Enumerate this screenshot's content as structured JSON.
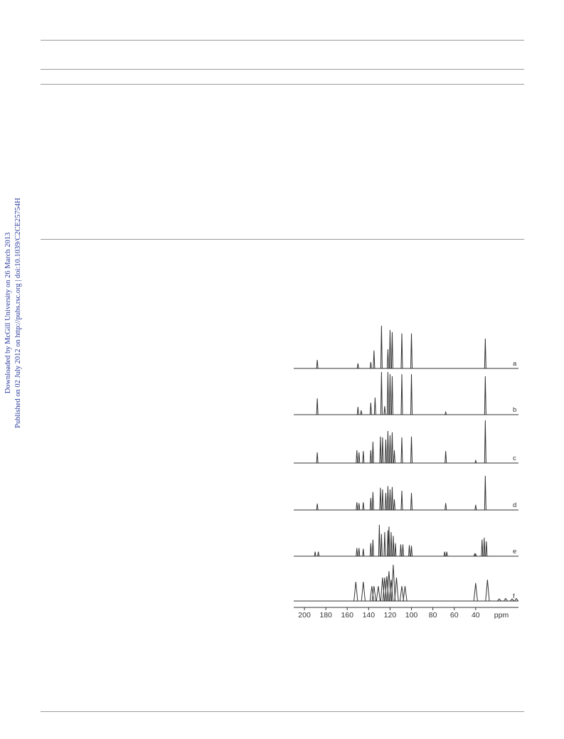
{
  "side_note": {
    "line1": "Downloaded by McGill University on 26 March 2013",
    "line2": "Published on 02 July 2012 on http://pubs.rsc.org | doi:10.1039/C2CE25754H",
    "color": "#2a3b9b"
  },
  "chart_data": {
    "type": "line",
    "title": "",
    "xlabel": "ppm",
    "ylabel": "",
    "xlim": [
      210,
      0
    ],
    "x_reversed": true,
    "grid": false,
    "x_ticks": [
      200,
      180,
      160,
      140,
      120,
      100,
      80,
      60,
      40
    ],
    "line_color": "#333333",
    "series": [
      {
        "name": "a",
        "peaks": [
          {
            "x": 188,
            "h": 0.2
          },
          {
            "x": 150,
            "h": 0.12
          },
          {
            "x": 138,
            "h": 0.15
          },
          {
            "x": 135,
            "h": 0.42
          },
          {
            "x": 128,
            "h": 1.0
          },
          {
            "x": 122,
            "h": 0.45
          },
          {
            "x": 120,
            "h": 0.9
          },
          {
            "x": 118,
            "h": 0.85
          },
          {
            "x": 109,
            "h": 0.82
          },
          {
            "x": 100,
            "h": 0.82
          },
          {
            "x": 31,
            "h": 0.7
          }
        ]
      },
      {
        "name": "b",
        "peaks": [
          {
            "x": 188,
            "h": 0.38
          },
          {
            "x": 150,
            "h": 0.18
          },
          {
            "x": 147,
            "h": 0.1
          },
          {
            "x": 138,
            "h": 0.28
          },
          {
            "x": 134,
            "h": 0.4
          },
          {
            "x": 128,
            "h": 1.0
          },
          {
            "x": 125,
            "h": 0.2
          },
          {
            "x": 122,
            "h": 1.0
          },
          {
            "x": 120,
            "h": 0.95
          },
          {
            "x": 118,
            "h": 0.9
          },
          {
            "x": 109,
            "h": 0.95
          },
          {
            "x": 100,
            "h": 0.95
          },
          {
            "x": 68,
            "h": 0.06
          },
          {
            "x": 31,
            "h": 0.9
          }
        ]
      },
      {
        "name": "c",
        "peaks": [
          {
            "x": 188,
            "h": 0.25
          },
          {
            "x": 151,
            "h": 0.3
          },
          {
            "x": 149,
            "h": 0.25
          },
          {
            "x": 145,
            "h": 0.28
          },
          {
            "x": 138,
            "h": 0.3
          },
          {
            "x": 136,
            "h": 0.5
          },
          {
            "x": 129,
            "h": 0.62
          },
          {
            "x": 127,
            "h": 0.6
          },
          {
            "x": 124,
            "h": 0.55
          },
          {
            "x": 122,
            "h": 0.75
          },
          {
            "x": 120,
            "h": 0.65
          },
          {
            "x": 118,
            "h": 0.72
          },
          {
            "x": 116,
            "h": 0.3
          },
          {
            "x": 109,
            "h": 0.6
          },
          {
            "x": 100,
            "h": 0.62
          },
          {
            "x": 68,
            "h": 0.28
          },
          {
            "x": 40,
            "h": 0.06
          },
          {
            "x": 31,
            "h": 1.0
          }
        ]
      },
      {
        "name": "d",
        "peaks": [
          {
            "x": 188,
            "h": 0.15
          },
          {
            "x": 151,
            "h": 0.18
          },
          {
            "x": 149,
            "h": 0.16
          },
          {
            "x": 145,
            "h": 0.18
          },
          {
            "x": 138,
            "h": 0.28
          },
          {
            "x": 136,
            "h": 0.42
          },
          {
            "x": 129,
            "h": 0.52
          },
          {
            "x": 127,
            "h": 0.48
          },
          {
            "x": 124,
            "h": 0.4
          },
          {
            "x": 122,
            "h": 0.56
          },
          {
            "x": 120,
            "h": 0.48
          },
          {
            "x": 118,
            "h": 0.54
          },
          {
            "x": 116,
            "h": 0.25
          },
          {
            "x": 109,
            "h": 0.45
          },
          {
            "x": 100,
            "h": 0.4
          },
          {
            "x": 68,
            "h": 0.16
          },
          {
            "x": 40,
            "h": 0.12
          },
          {
            "x": 31,
            "h": 0.8
          }
        ]
      },
      {
        "name": "e",
        "peaks": [
          {
            "x": 190,
            "h": 0.12
          },
          {
            "x": 187,
            "h": 0.12
          },
          {
            "x": 151,
            "h": 0.22
          },
          {
            "x": 149,
            "h": 0.22
          },
          {
            "x": 145,
            "h": 0.2
          },
          {
            "x": 138,
            "h": 0.35
          },
          {
            "x": 136,
            "h": 0.45
          },
          {
            "x": 130,
            "h": 0.85
          },
          {
            "x": 128,
            "h": 0.6
          },
          {
            "x": 125,
            "h": 0.65
          },
          {
            "x": 122,
            "h": 0.7
          },
          {
            "x": 121,
            "h": 0.8
          },
          {
            "x": 119,
            "h": 0.65
          },
          {
            "x": 117,
            "h": 0.55
          },
          {
            "x": 115,
            "h": 0.35
          },
          {
            "x": 110,
            "h": 0.32
          },
          {
            "x": 108,
            "h": 0.32
          },
          {
            "x": 102,
            "h": 0.3
          },
          {
            "x": 100,
            "h": 0.28
          },
          {
            "x": 69,
            "h": 0.12
          },
          {
            "x": 67,
            "h": 0.12
          },
          {
            "x": 41,
            "h": 0.06
          },
          {
            "x": 40,
            "h": 0.06
          },
          {
            "x": 34,
            "h": 0.45
          },
          {
            "x": 32,
            "h": 0.5
          },
          {
            "x": 30,
            "h": 0.4
          }
        ]
      },
      {
        "name": "f",
        "peaks": [
          {
            "x": 152,
            "h": 0.45
          },
          {
            "x": 145,
            "h": 0.45
          },
          {
            "x": 137,
            "h": 0.35
          },
          {
            "x": 135,
            "h": 0.35
          },
          {
            "x": 131,
            "h": 0.35
          },
          {
            "x": 127,
            "h": 0.55
          },
          {
            "x": 125,
            "h": 0.55
          },
          {
            "x": 123,
            "h": 0.58
          },
          {
            "x": 121,
            "h": 0.7
          },
          {
            "x": 119,
            "h": 0.5
          },
          {
            "x": 117,
            "h": 0.85
          },
          {
            "x": 114,
            "h": 0.55
          },
          {
            "x": 109,
            "h": 0.35
          },
          {
            "x": 106,
            "h": 0.35
          },
          {
            "x": 40,
            "h": 0.42
          },
          {
            "x": 29,
            "h": 0.5
          },
          {
            "x": 18,
            "h": 0.05
          },
          {
            "x": 12,
            "h": 0.06
          },
          {
            "x": 6,
            "h": 0.05
          },
          {
            "x": 2,
            "h": 0.06
          }
        ]
      }
    ]
  }
}
